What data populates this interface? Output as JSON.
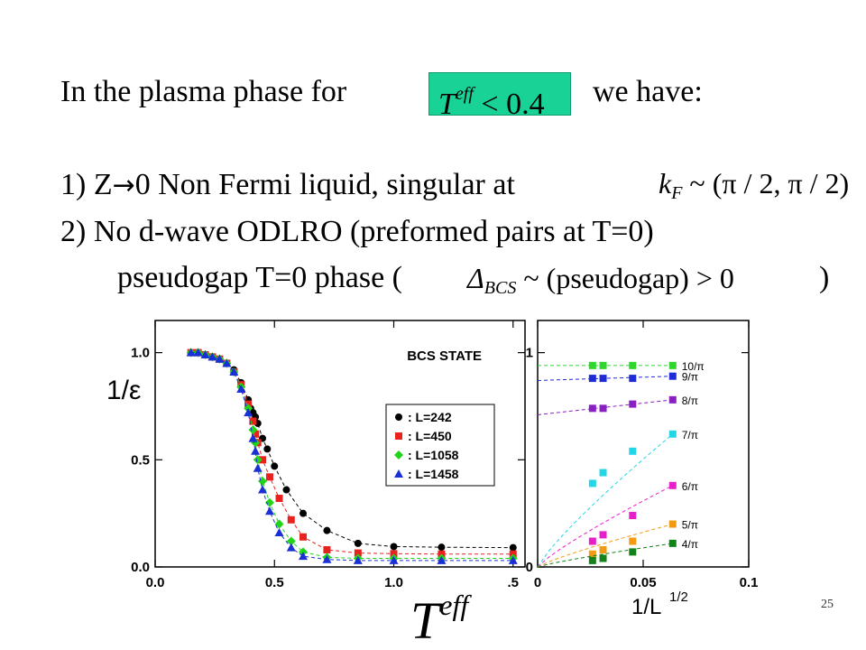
{
  "slide": {
    "line1_pre": "In the plasma phase for",
    "line1_condition_T": "T",
    "line1_condition_sup": "eff",
    "line1_condition_rest": " < 0.4",
    "line1_post": "we have:",
    "item1_pre": "1) Z",
    "item1_arrow": "→",
    "item1_post": "0 Non Fermi liquid, singular at",
    "item1_math_k": "k",
    "item1_math_sub": "F",
    "item1_math_rest": " ~ (π / 2, π / 2)",
    "item2": "2)  No d-wave ODLRO (preformed pairs at T=0)",
    "item3_pre": "pseudogap  T=0 phase (",
    "item3_math_delta": "Δ",
    "item3_math_sub": "BCS",
    "item3_math_rest": " ~ (pseudogap) > 0",
    "item3_post": ")",
    "bottom_T": "T",
    "bottom_sup": "eff",
    "slide_number": "25"
  },
  "chart_data": [
    {
      "type": "scatter",
      "title": "BCS STATE",
      "ylabel": "1/ε",
      "xlim": [
        0.0,
        1.55
      ],
      "ylim": [
        0.0,
        1.15
      ],
      "xticks": [
        "0.0",
        "0.5",
        "1.0",
        ".5"
      ],
      "xtick_values": [
        0.0,
        0.5,
        1.0,
        1.5
      ],
      "yticks": [
        "0.0",
        "0.5",
        "1.0"
      ],
      "ytick_values": [
        0.0,
        0.5,
        1.0
      ],
      "legend_position": "center-right",
      "series": [
        {
          "name": ": L=242",
          "color": "#000000",
          "marker": "circle",
          "points": [
            [
              0.15,
              1.0
            ],
            [
              0.18,
              1.0
            ],
            [
              0.21,
              0.99
            ],
            [
              0.24,
              0.98
            ],
            [
              0.27,
              0.97
            ],
            [
              0.3,
              0.95
            ],
            [
              0.33,
              0.92
            ],
            [
              0.36,
              0.86
            ],
            [
              0.39,
              0.78
            ],
            [
              0.4,
              0.74
            ],
            [
              0.41,
              0.72
            ],
            [
              0.42,
              0.7
            ],
            [
              0.43,
              0.67
            ],
            [
              0.45,
              0.6
            ],
            [
              0.47,
              0.55
            ],
            [
              0.5,
              0.47
            ],
            [
              0.55,
              0.36
            ],
            [
              0.62,
              0.25
            ],
            [
              0.72,
              0.17
            ],
            [
              0.85,
              0.11
            ],
            [
              1.0,
              0.095
            ],
            [
              1.2,
              0.092
            ],
            [
              1.5,
              0.09
            ]
          ]
        },
        {
          "name": ": L=450",
          "color": "#e8231f",
          "marker": "square",
          "points": [
            [
              0.15,
              1.0
            ],
            [
              0.18,
              1.0
            ],
            [
              0.21,
              0.99
            ],
            [
              0.24,
              0.98
            ],
            [
              0.27,
              0.97
            ],
            [
              0.3,
              0.95
            ],
            [
              0.33,
              0.91
            ],
            [
              0.36,
              0.85
            ],
            [
              0.39,
              0.76
            ],
            [
              0.41,
              0.68
            ],
            [
              0.42,
              0.62
            ],
            [
              0.43,
              0.58
            ],
            [
              0.45,
              0.5
            ],
            [
              0.48,
              0.42
            ],
            [
              0.52,
              0.32
            ],
            [
              0.57,
              0.22
            ],
            [
              0.62,
              0.14
            ],
            [
              0.72,
              0.08
            ],
            [
              0.85,
              0.065
            ],
            [
              1.0,
              0.062
            ],
            [
              1.2,
              0.06
            ],
            [
              1.5,
              0.06
            ]
          ]
        },
        {
          "name": ": L=1058",
          "color": "#22d51a",
          "marker": "diamond",
          "points": [
            [
              0.15,
              1.0
            ],
            [
              0.18,
              1.0
            ],
            [
              0.21,
              0.99
            ],
            [
              0.24,
              0.98
            ],
            [
              0.27,
              0.97
            ],
            [
              0.3,
              0.95
            ],
            [
              0.33,
              0.91
            ],
            [
              0.36,
              0.84
            ],
            [
              0.39,
              0.74
            ],
            [
              0.41,
              0.64
            ],
            [
              0.42,
              0.58
            ],
            [
              0.43,
              0.5
            ],
            [
              0.45,
              0.4
            ],
            [
              0.48,
              0.3
            ],
            [
              0.52,
              0.2
            ],
            [
              0.57,
              0.12
            ],
            [
              0.62,
              0.07
            ],
            [
              0.72,
              0.045
            ],
            [
              0.85,
              0.04
            ],
            [
              1.0,
              0.04
            ],
            [
              1.2,
              0.04
            ],
            [
              1.5,
              0.04
            ]
          ]
        },
        {
          "name": ": L=1458",
          "color": "#1a2fd5",
          "marker": "triangle",
          "points": [
            [
              0.15,
              1.0
            ],
            [
              0.18,
              1.0
            ],
            [
              0.21,
              0.99
            ],
            [
              0.24,
              0.98
            ],
            [
              0.27,
              0.97
            ],
            [
              0.3,
              0.95
            ],
            [
              0.33,
              0.91
            ],
            [
              0.36,
              0.83
            ],
            [
              0.39,
              0.72
            ],
            [
              0.41,
              0.6
            ],
            [
              0.42,
              0.54
            ],
            [
              0.43,
              0.46
            ],
            [
              0.45,
              0.36
            ],
            [
              0.48,
              0.26
            ],
            [
              0.52,
              0.16
            ],
            [
              0.57,
              0.09
            ],
            [
              0.62,
              0.05
            ],
            [
              0.72,
              0.035
            ],
            [
              0.85,
              0.03
            ],
            [
              1.0,
              0.03
            ],
            [
              1.2,
              0.03
            ],
            [
              1.5,
              0.03
            ]
          ]
        }
      ]
    },
    {
      "type": "scatter",
      "xlabel": "1/L",
      "xlabel_sup": "1/2",
      "xlim": [
        0.0,
        0.1
      ],
      "ylim": [
        0.0,
        1.15
      ],
      "xticks": [
        "0",
        "0.05",
        "0.1"
      ],
      "xtick_values": [
        0.0,
        0.05,
        0.1
      ],
      "yticks": [
        "0",
        "1"
      ],
      "ytick_values": [
        0.0,
        1.0
      ],
      "series": [
        {
          "name": "10/π",
          "color": "#2fd62c",
          "points": [
            [
              0.026,
              0.94
            ],
            [
              0.031,
              0.94
            ],
            [
              0.045,
              0.94
            ],
            [
              0.064,
              0.94
            ]
          ],
          "fit": [
            [
              0.0,
              0.94
            ],
            [
              0.064,
              0.94
            ]
          ]
        },
        {
          "name": "9/π",
          "color": "#1f2bd6",
          "points": [
            [
              0.026,
              0.88
            ],
            [
              0.031,
              0.88
            ],
            [
              0.045,
              0.88
            ],
            [
              0.064,
              0.89
            ]
          ],
          "fit": [
            [
              0.0,
              0.87
            ],
            [
              0.064,
              0.89
            ]
          ]
        },
        {
          "name": "8/π",
          "color": "#8a1fc2",
          "points": [
            [
              0.026,
              0.74
            ],
            [
              0.031,
              0.74
            ],
            [
              0.045,
              0.76
            ],
            [
              0.064,
              0.78
            ]
          ],
          "fit": [
            [
              0.0,
              0.71
            ],
            [
              0.064,
              0.78
            ]
          ]
        },
        {
          "name": "7/π",
          "color": "#22d6e8",
          "points": [
            [
              0.026,
              0.39
            ],
            [
              0.031,
              0.44
            ],
            [
              0.045,
              0.54
            ],
            [
              0.064,
              0.62
            ]
          ],
          "fit": [
            [
              0.0,
              0.0
            ],
            [
              0.064,
              0.62
            ]
          ]
        },
        {
          "name": "6/π",
          "color": "#e81fc8",
          "points": [
            [
              0.026,
              0.12
            ],
            [
              0.031,
              0.15
            ],
            [
              0.045,
              0.24
            ],
            [
              0.064,
              0.38
            ]
          ],
          "fit": [
            [
              0.0,
              0.0
            ],
            [
              0.064,
              0.38
            ]
          ]
        },
        {
          "name": "5/π",
          "color": "#f29a12",
          "points": [
            [
              0.026,
              0.06
            ],
            [
              0.031,
              0.08
            ],
            [
              0.045,
              0.12
            ],
            [
              0.064,
              0.2
            ]
          ],
          "fit": [
            [
              0.0,
              0.0
            ],
            [
              0.064,
              0.2
            ]
          ]
        },
        {
          "name": "4/π",
          "color": "#13821a",
          "points": [
            [
              0.026,
              0.03
            ],
            [
              0.031,
              0.04
            ],
            [
              0.045,
              0.07
            ],
            [
              0.064,
              0.11
            ]
          ],
          "fit": [
            [
              0.0,
              0.0
            ],
            [
              0.064,
              0.11
            ]
          ]
        }
      ]
    }
  ]
}
